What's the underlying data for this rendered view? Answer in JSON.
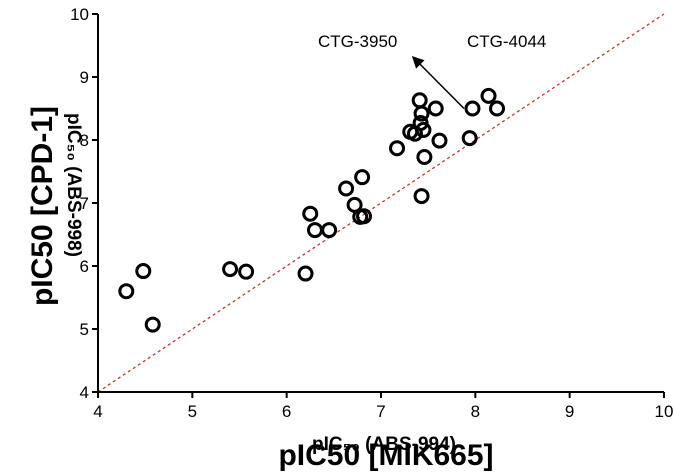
{
  "chart_data": {
    "type": "scatter",
    "xlabel": "pIC50 [MIK665]",
    "xlabel_underlay": "pIC₅₀ (ABS-994)",
    "ylabel": "pIC50 [CPD-1]",
    "ylabel_underlay": "pIC₅₀ (ABS-998)",
    "xlim": [
      4,
      10
    ],
    "ylim": [
      4,
      10
    ],
    "x_ticks": [
      "4",
      "5",
      "6",
      "7",
      "8",
      "9",
      "10"
    ],
    "y_ticks": [
      "4",
      "5",
      "6",
      "7",
      "8",
      "9",
      "10"
    ],
    "grid": false,
    "identity_line": {
      "color": "#c0392b",
      "style": "dotted",
      "from": [
        4,
        4
      ],
      "to": [
        10,
        10
      ]
    },
    "marker": {
      "shape": "open-circle",
      "color": "#000000"
    },
    "annotations": [
      {
        "text": "CTG-3950",
        "arrow_from": [
          7.88,
          8.5
        ],
        "arrow_to": [
          7.35,
          9.3
        ]
      },
      {
        "text": "CTG-4044"
      }
    ],
    "series": [
      {
        "points": [
          {
            "x": 4.3,
            "y": 5.6
          },
          {
            "x": 4.48,
            "y": 5.92
          },
          {
            "x": 4.58,
            "y": 5.07
          },
          {
            "x": 5.4,
            "y": 5.95
          },
          {
            "x": 5.57,
            "y": 5.91
          },
          {
            "x": 6.2,
            "y": 5.88
          },
          {
            "x": 6.25,
            "y": 6.83
          },
          {
            "x": 6.3,
            "y": 6.57
          },
          {
            "x": 6.45,
            "y": 6.57
          },
          {
            "x": 6.63,
            "y": 7.23
          },
          {
            "x": 6.72,
            "y": 6.97
          },
          {
            "x": 6.78,
            "y": 6.78
          },
          {
            "x": 6.8,
            "y": 7.41
          },
          {
            "x": 6.82,
            "y": 6.79
          },
          {
            "x": 7.17,
            "y": 7.87
          },
          {
            "x": 7.31,
            "y": 8.13
          },
          {
            "x": 7.36,
            "y": 8.1
          },
          {
            "x": 7.41,
            "y": 8.63
          },
          {
            "x": 7.43,
            "y": 8.42
          },
          {
            "x": 7.42,
            "y": 8.27
          },
          {
            "x": 7.45,
            "y": 8.16
          },
          {
            "x": 7.43,
            "y": 7.11
          },
          {
            "x": 7.46,
            "y": 7.73
          },
          {
            "x": 7.58,
            "y": 8.5
          },
          {
            "x": 7.62,
            "y": 7.99
          },
          {
            "x": 7.94,
            "y": 8.03
          },
          {
            "x": 7.97,
            "y": 8.5
          },
          {
            "x": 8.14,
            "y": 8.7
          },
          {
            "x": 8.23,
            "y": 8.5
          }
        ]
      }
    ]
  }
}
